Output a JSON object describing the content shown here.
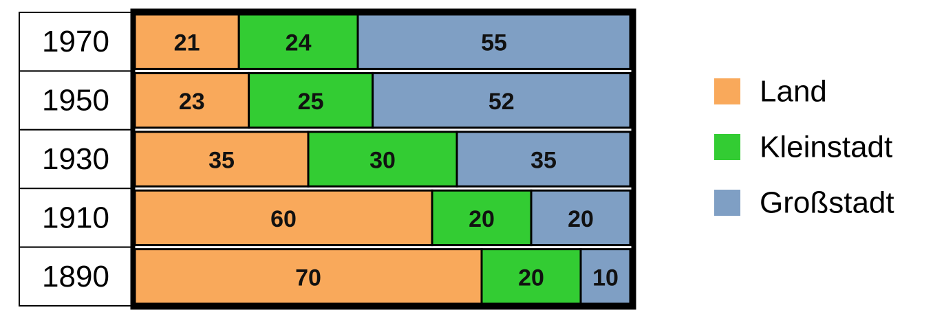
{
  "chart_data": {
    "type": "stacked-bar-horizontal",
    "categories": [
      "1970",
      "1950",
      "1930",
      "1910",
      "1890"
    ],
    "series": [
      {
        "name": "Land",
        "color": "#f9a95b",
        "values": [
          21,
          23,
          35,
          60,
          70
        ]
      },
      {
        "name": "Kleinstadt",
        "color": "#33cc33",
        "values": [
          24,
          25,
          30,
          20,
          20
        ]
      },
      {
        "name": "Großstadt",
        "color": "#7f9fc4",
        "values": [
          55,
          52,
          35,
          20,
          10
        ]
      }
    ],
    "xlim": [
      0,
      100
    ],
    "legend": "right"
  }
}
